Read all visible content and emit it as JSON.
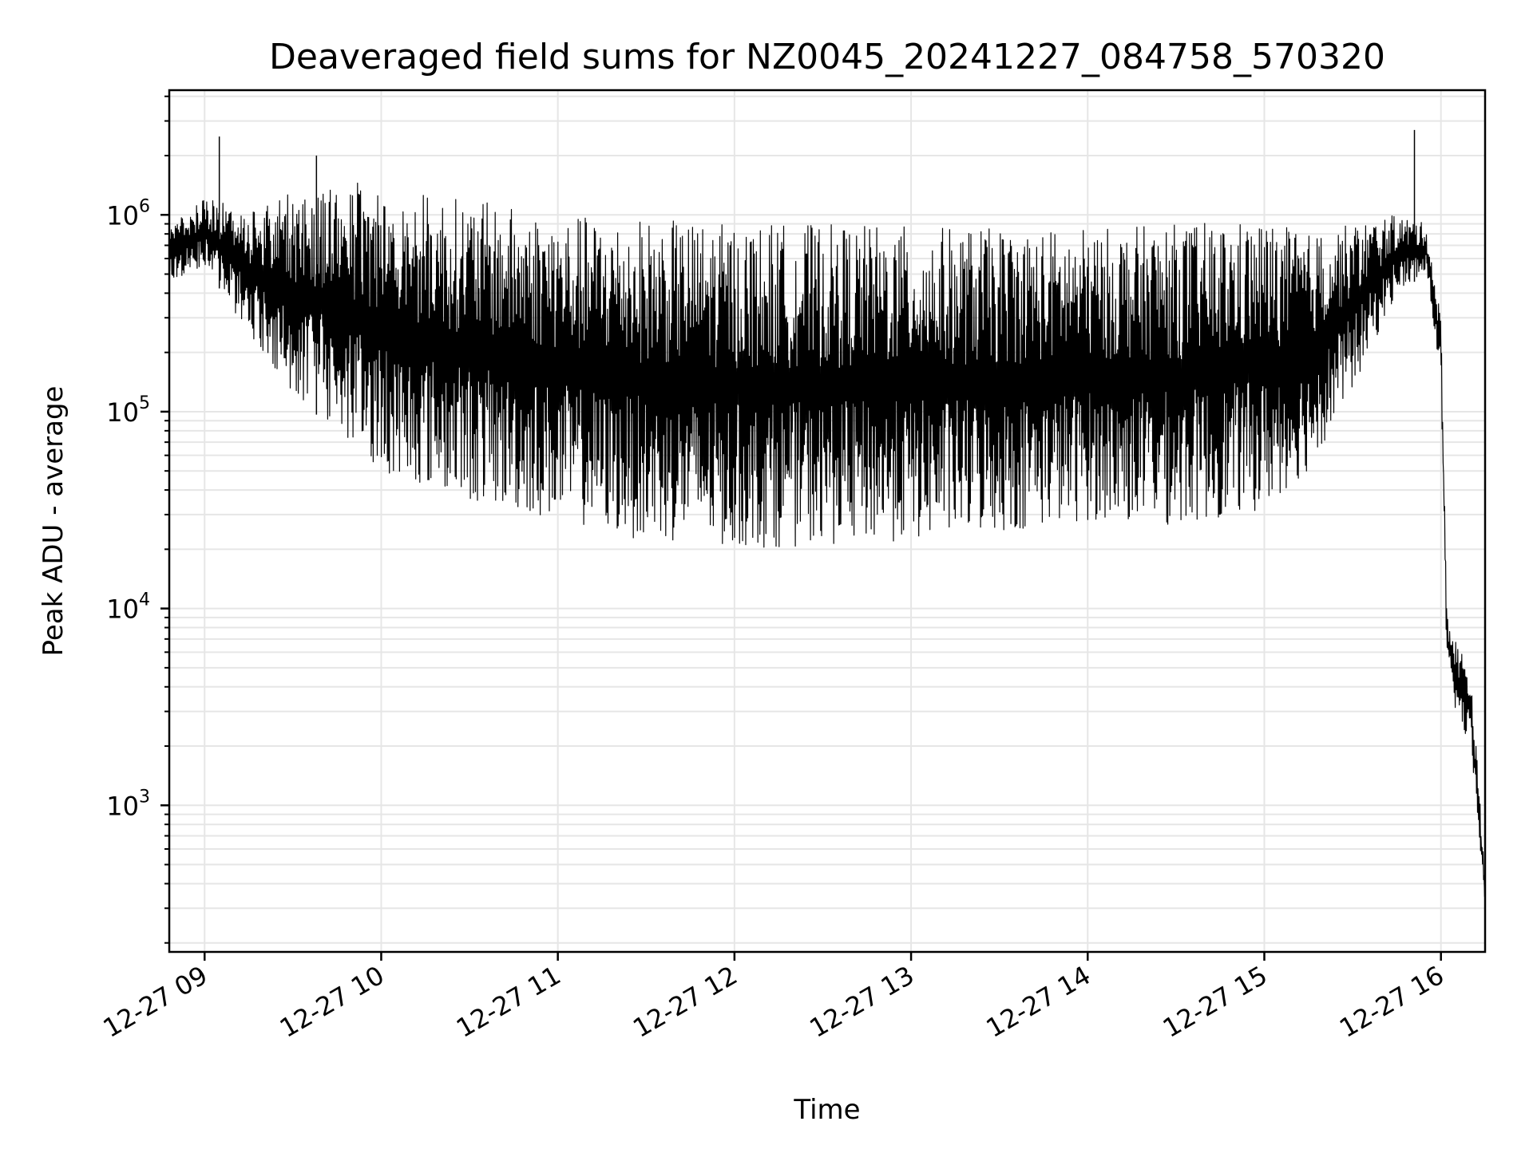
{
  "chart_data": {
    "type": "line",
    "title": "Deaveraged field sums for NZ0045_20241227_084758_570320",
    "xlabel": "Time",
    "ylabel": "Peak ADU - average",
    "yscale": "log",
    "ylim": [
      180,
      4300000
    ],
    "xlim": [
      "2024-12-27 08:48",
      "2024-12-27 16:15"
    ],
    "x_ticks": [
      "12-27 09",
      "12-27 10",
      "12-27 11",
      "12-27 12",
      "12-27 13",
      "12-27 14",
      "12-27 15",
      "12-27 16"
    ],
    "y_ticks": [
      {
        "base": "10",
        "exp": "3",
        "value": 1000
      },
      {
        "base": "10",
        "exp": "4",
        "value": 10000
      },
      {
        "base": "10",
        "exp": "5",
        "value": 100000
      },
      {
        "base": "10",
        "exp": "6",
        "value": 1000000
      }
    ],
    "grid": true,
    "line_color": "#000000",
    "series": [
      {
        "envelope": {
          "time": [
            "2024-12-27 08:48",
            "2024-12-27 09:00",
            "2024-12-27 09:15",
            "2024-12-27 09:30",
            "2024-12-27 09:45",
            "2024-12-27 10:00",
            "2024-12-27 10:30",
            "2024-12-27 11:00",
            "2024-12-27 11:30",
            "2024-12-27 12:00",
            "2024-12-27 12:30",
            "2024-12-27 13:00",
            "2024-12-27 13:30",
            "2024-12-27 14:00",
            "2024-12-27 14:30",
            "2024-12-27 15:00",
            "2024-12-27 15:15",
            "2024-12-27 15:30",
            "2024-12-27 15:45",
            "2024-12-27 15:55",
            "2024-12-27 16:00",
            "2024-12-27 16:02",
            "2024-12-27 16:05",
            "2024-12-27 16:10",
            "2024-12-27 16:13",
            "2024-12-27 16:15"
          ],
          "low": [
            450000,
            550000,
            250000,
            120000,
            80000,
            50000,
            35000,
            28000,
            22000,
            20000,
            21000,
            22000,
            24000,
            28000,
            26000,
            32000,
            50000,
            130000,
            400000,
            500000,
            150000,
            5000,
            3000,
            1900,
            700,
            300
          ],
          "high": [
            900000,
            1200000,
            1100000,
            1300000,
            1500000,
            1400000,
            1200000,
            1000000,
            950000,
            900000,
            900000,
            880000,
            850000,
            850000,
            900000,
            950000,
            800000,
            900000,
            1000000,
            900000,
            300000,
            10000,
            7000,
            5000,
            1200,
            400
          ]
        },
        "peaks": [
          {
            "time": "2024-12-27 09:05",
            "value": 2500000
          },
          {
            "time": "2024-12-27 09:38",
            "value": 2000000
          },
          {
            "time": "2024-12-27 15:51",
            "value": 2700000
          }
        ]
      }
    ]
  }
}
